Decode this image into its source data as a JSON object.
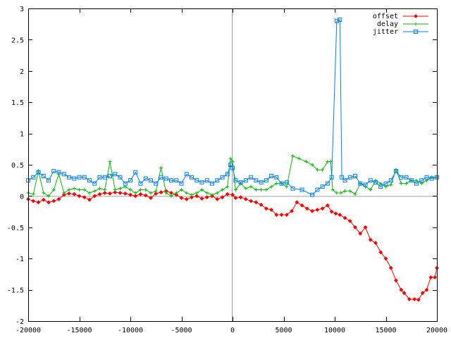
{
  "chart_data": {
    "type": "line",
    "title": "",
    "xlabel": "",
    "ylabel": "",
    "xlim": [
      -20000,
      20000
    ],
    "ylim": [
      -2,
      3
    ],
    "x_ticks": [
      -20000,
      -15000,
      -10000,
      -5000,
      0,
      5000,
      10000,
      15000,
      20000
    ],
    "y_ticks": [
      -2,
      -1.5,
      -1,
      -0.5,
      0,
      0.5,
      1,
      1.5,
      2,
      2.5,
      3
    ],
    "x_tick_labels": [
      "-20000",
      "-15000",
      "-10000",
      "-5000",
      "0",
      "5000",
      "10000",
      "15000",
      "20000"
    ],
    "y_tick_labels": [
      "-2",
      "-1.5",
      "-1",
      "-0.5",
      "0",
      "0.5",
      "1",
      "1.5",
      "2",
      "2.5",
      "3"
    ],
    "zero_lines": true,
    "legend_position": "top-right",
    "series": [
      {
        "name": "offset",
        "color": "#ff0000",
        "marker": "diamond",
        "points": [
          [
            -20000,
            -0.05
          ],
          [
            -19500,
            -0.08
          ],
          [
            -19000,
            -0.1
          ],
          [
            -18500,
            -0.06
          ],
          [
            -18000,
            -0.1
          ],
          [
            -17500,
            -0.08
          ],
          [
            -17000,
            -0.05
          ],
          [
            -16500,
            0.02
          ],
          [
            -16000,
            0.04
          ],
          [
            -15500,
            0.03
          ],
          [
            -15000,
            0.0
          ],
          [
            -14500,
            -0.02
          ],
          [
            -14000,
            -0.06
          ],
          [
            -13500,
            0.0
          ],
          [
            -13000,
            0.03
          ],
          [
            -12500,
            0.05
          ],
          [
            -12000,
            0.04
          ],
          [
            -11500,
            0.06
          ],
          [
            -11000,
            0.05
          ],
          [
            -10500,
            0.04
          ],
          [
            -10000,
            0.02
          ],
          [
            -9500,
            0.0
          ],
          [
            -9000,
            0.03
          ],
          [
            -8500,
            0.01
          ],
          [
            -8000,
            -0.03
          ],
          [
            -7500,
            0.04
          ],
          [
            -7000,
            0.06
          ],
          [
            -6500,
            0.08
          ],
          [
            -6000,
            0.05
          ],
          [
            -5500,
            0.02
          ],
          [
            -5000,
            -0.03
          ],
          [
            -4500,
            -0.05
          ],
          [
            -4000,
            -0.02
          ],
          [
            -3500,
            0.0
          ],
          [
            -3000,
            -0.04
          ],
          [
            -2500,
            -0.02
          ],
          [
            -2000,
            0.0
          ],
          [
            -1500,
            -0.05
          ],
          [
            -1000,
            -0.02
          ],
          [
            -500,
            0.03
          ],
          [
            0,
            0.02
          ],
          [
            300,
            -0.03
          ],
          [
            800,
            -0.02
          ],
          [
            1300,
            -0.05
          ],
          [
            1800,
            -0.08
          ],
          [
            2300,
            -0.1
          ],
          [
            2800,
            -0.14
          ],
          [
            3300,
            -0.2
          ],
          [
            3800,
            -0.22
          ],
          [
            4300,
            -0.3
          ],
          [
            4800,
            -0.3
          ],
          [
            5300,
            -0.3
          ],
          [
            5800,
            -0.24
          ],
          [
            6300,
            -0.1
          ],
          [
            6800,
            -0.15
          ],
          [
            7300,
            -0.2
          ],
          [
            7800,
            -0.24
          ],
          [
            8300,
            -0.22
          ],
          [
            8800,
            -0.2
          ],
          [
            9300,
            -0.15
          ],
          [
            9700,
            -0.25
          ],
          [
            10100,
            -0.28
          ],
          [
            10500,
            -0.3
          ],
          [
            11000,
            -0.35
          ],
          [
            11500,
            -0.4
          ],
          [
            12000,
            -0.5
          ],
          [
            12500,
            -0.6
          ],
          [
            13000,
            -0.5
          ],
          [
            13500,
            -0.7
          ],
          [
            14000,
            -0.75
          ],
          [
            14500,
            -0.9
          ],
          [
            15000,
            -1.0
          ],
          [
            15500,
            -1.15
          ],
          [
            16000,
            -1.35
          ],
          [
            16500,
            -1.5
          ],
          [
            16800,
            -1.55
          ],
          [
            17300,
            -1.65
          ],
          [
            17800,
            -1.65
          ],
          [
            18200,
            -1.66
          ],
          [
            18600,
            -1.55
          ],
          [
            19000,
            -1.5
          ],
          [
            19400,
            -1.3
          ],
          [
            19800,
            -1.3
          ],
          [
            20000,
            -1.15
          ]
        ]
      },
      {
        "name": "delay",
        "color": "#00c000",
        "marker": "plus",
        "points": [
          [
            -20000,
            0.05
          ],
          [
            -19500,
            0.03
          ],
          [
            -19000,
            0.4
          ],
          [
            -18500,
            0.05
          ],
          [
            -18000,
            0.0
          ],
          [
            -17500,
            0.1
          ],
          [
            -17000,
            0.35
          ],
          [
            -16500,
            0.05
          ],
          [
            -16000,
            0.1
          ],
          [
            -15500,
            0.12
          ],
          [
            -15000,
            0.1
          ],
          [
            -14500,
            0.1
          ],
          [
            -14000,
            0.05
          ],
          [
            -13500,
            0.08
          ],
          [
            -13000,
            0.12
          ],
          [
            -12500,
            0.1
          ],
          [
            -12000,
            0.55
          ],
          [
            -11500,
            0.1
          ],
          [
            -11000,
            0.12
          ],
          [
            -10500,
            0.15
          ],
          [
            -10000,
            0.1
          ],
          [
            -9500,
            0.05
          ],
          [
            -9000,
            0.1
          ],
          [
            -8500,
            0.1
          ],
          [
            -8000,
            0.05
          ],
          [
            -7500,
            0.08
          ],
          [
            -7000,
            0.45
          ],
          [
            -6500,
            0.05
          ],
          [
            -6000,
            0.0
          ],
          [
            -5500,
            0.05
          ],
          [
            -5000,
            0.1
          ],
          [
            -4500,
            0.05
          ],
          [
            -4000,
            0.02
          ],
          [
            -3500,
            0.05
          ],
          [
            -3000,
            0.1
          ],
          [
            -2500,
            0.05
          ],
          [
            -2000,
            0.02
          ],
          [
            -1500,
            0.05
          ],
          [
            -1000,
            0.1
          ],
          [
            -500,
            0.15
          ],
          [
            -200,
            0.6
          ],
          [
            0,
            0.55
          ],
          [
            300,
            0.1
          ],
          [
            800,
            0.2
          ],
          [
            1300,
            0.12
          ],
          [
            1800,
            0.15
          ],
          [
            2300,
            0.1
          ],
          [
            2800,
            0.1
          ],
          [
            3300,
            0.1
          ],
          [
            3800,
            0.15
          ],
          [
            4300,
            0.2
          ],
          [
            4800,
            0.2
          ],
          [
            5300,
            0.15
          ],
          [
            5900,
            0.64
          ],
          [
            6500,
            0.6
          ],
          [
            7200,
            0.55
          ],
          [
            7800,
            0.5
          ],
          [
            8300,
            0.42
          ],
          [
            8800,
            0.42
          ],
          [
            9300,
            0.55
          ],
          [
            9600,
            0.55
          ],
          [
            9800,
            0.1
          ],
          [
            10200,
            0.05
          ],
          [
            10600,
            0.05
          ],
          [
            11000,
            0.08
          ],
          [
            11500,
            0.08
          ],
          [
            12000,
            0.03
          ],
          [
            12500,
            0.2
          ],
          [
            13000,
            0.15
          ],
          [
            13500,
            0.1
          ],
          [
            14000,
            0.25
          ],
          [
            14500,
            0.2
          ],
          [
            15000,
            0.15
          ],
          [
            15500,
            0.18
          ],
          [
            16000,
            0.42
          ],
          [
            16500,
            0.2
          ],
          [
            17000,
            0.2
          ],
          [
            17500,
            0.25
          ],
          [
            18000,
            0.25
          ],
          [
            18500,
            0.2
          ],
          [
            19000,
            0.25
          ],
          [
            19500,
            0.3
          ],
          [
            20000,
            0.3
          ]
        ]
      },
      {
        "name": "jitter",
        "color": "#0080ff",
        "marker": "square",
        "points": [
          [
            -20000,
            0.25
          ],
          [
            -19500,
            0.3
          ],
          [
            -19000,
            0.38
          ],
          [
            -18500,
            0.32
          ],
          [
            -18000,
            0.25
          ],
          [
            -17500,
            0.4
          ],
          [
            -17000,
            0.38
          ],
          [
            -16500,
            0.35
          ],
          [
            -16000,
            0.3
          ],
          [
            -15500,
            0.28
          ],
          [
            -15000,
            0.3
          ],
          [
            -14500,
            0.3
          ],
          [
            -14000,
            0.25
          ],
          [
            -13500,
            0.2
          ],
          [
            -13000,
            0.3
          ],
          [
            -12500,
            0.3
          ],
          [
            -12000,
            0.32
          ],
          [
            -11500,
            0.35
          ],
          [
            -11000,
            0.3
          ],
          [
            -10500,
            0.2
          ],
          [
            -10000,
            0.25
          ],
          [
            -9500,
            0.38
          ],
          [
            -9000,
            0.2
          ],
          [
            -8500,
            0.28
          ],
          [
            -8000,
            0.25
          ],
          [
            -7500,
            0.2
          ],
          [
            -7000,
            0.3
          ],
          [
            -6500,
            0.28
          ],
          [
            -6000,
            0.25
          ],
          [
            -5500,
            0.25
          ],
          [
            -5000,
            0.2
          ],
          [
            -4500,
            0.35
          ],
          [
            -4000,
            0.3
          ],
          [
            -3500,
            0.25
          ],
          [
            -3000,
            0.22
          ],
          [
            -2500,
            0.25
          ],
          [
            -2000,
            0.2
          ],
          [
            -1500,
            0.25
          ],
          [
            -1000,
            0.3
          ],
          [
            -500,
            0.35
          ],
          [
            -200,
            0.5
          ],
          [
            0,
            0.45
          ],
          [
            300,
            0.25
          ],
          [
            800,
            0.22
          ],
          [
            1300,
            0.25
          ],
          [
            1800,
            0.3
          ],
          [
            2300,
            0.25
          ],
          [
            2800,
            0.22
          ],
          [
            3300,
            0.25
          ],
          [
            3800,
            0.32
          ],
          [
            4300,
            0.3
          ],
          [
            4800,
            0.2
          ],
          [
            5300,
            0.22
          ],
          [
            5900,
            0.12
          ],
          [
            6800,
            0.1
          ],
          [
            7800,
            0.02
          ],
          [
            8300,
            0.1
          ],
          [
            8800,
            0.15
          ],
          [
            9300,
            0.2
          ],
          [
            9700,
            0.3
          ],
          [
            10200,
            2.8
          ],
          [
            10500,
            2.82
          ],
          [
            10700,
            0.3
          ],
          [
            11000,
            0.25
          ],
          [
            11500,
            0.3
          ],
          [
            12000,
            0.32
          ],
          [
            12500,
            0.2
          ],
          [
            13000,
            0.18
          ],
          [
            13500,
            0.25
          ],
          [
            14000,
            0.22
          ],
          [
            14500,
            0.15
          ],
          [
            15000,
            0.2
          ],
          [
            15500,
            0.25
          ],
          [
            16000,
            0.4
          ],
          [
            16500,
            0.3
          ],
          [
            17000,
            0.3
          ],
          [
            17500,
            0.25
          ],
          [
            18000,
            0.2
          ],
          [
            18500,
            0.25
          ],
          [
            19000,
            0.3
          ],
          [
            19500,
            0.28
          ],
          [
            20000,
            0.3
          ]
        ]
      }
    ]
  }
}
